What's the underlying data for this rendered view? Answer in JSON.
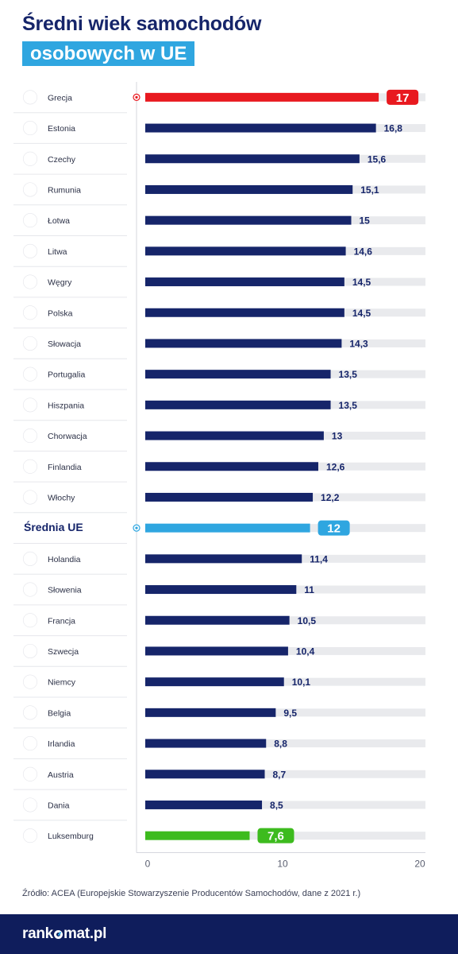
{
  "title_line1": "Średni wiek samochodów",
  "title_line2": "osobowych w UE",
  "source": "Źródło: ACEA (Europejskie Stowarzyszenie Producentów Samochodów, dane z 2021 r.)",
  "footer": {
    "logo_before": "rank",
    "logo_after": "mat.pl"
  },
  "colors": {
    "navy": "#16256a",
    "highlight_max": "#e8191f",
    "highlight_avg": "#2fa6e0",
    "highlight_min": "#3dbb1e",
    "track": "#e9eaed"
  },
  "chart_data": {
    "type": "bar",
    "orientation": "horizontal",
    "xlim": [
      0,
      20
    ],
    "xticks": [
      "0",
      "10",
      "20"
    ],
    "rows": [
      {
        "label": "Grecja",
        "value": 17,
        "display": "17",
        "flag": "greece",
        "highlight": "max",
        "marker": true
      },
      {
        "label": "Estonia",
        "value": 16.8,
        "display": "16,8",
        "flag": "estonia"
      },
      {
        "label": "Czechy",
        "value": 15.6,
        "display": "15,6",
        "flag": "czechia"
      },
      {
        "label": "Rumunia",
        "value": 15.1,
        "display": "15,1",
        "flag": "romania"
      },
      {
        "label": "Łotwa",
        "value": 15,
        "display": "15",
        "flag": "latvia"
      },
      {
        "label": "Litwa",
        "value": 14.6,
        "display": "14,6",
        "flag": "lithuania"
      },
      {
        "label": "Węgry",
        "value": 14.5,
        "display": "14,5",
        "flag": "hungary"
      },
      {
        "label": "Polska",
        "value": 14.5,
        "display": "14,5",
        "flag": "poland"
      },
      {
        "label": "Słowacja",
        "value": 14.3,
        "display": "14,3",
        "flag": "slovakia"
      },
      {
        "label": "Portugalia",
        "value": 13.5,
        "display": "13,5",
        "flag": "portugal"
      },
      {
        "label": "Hiszpania",
        "value": 13.5,
        "display": "13,5",
        "flag": "spain"
      },
      {
        "label": "Chorwacja",
        "value": 13,
        "display": "13",
        "flag": "croatia"
      },
      {
        "label": "Finlandia",
        "value": 12.6,
        "display": "12,6",
        "flag": "finland"
      },
      {
        "label": "Włochy",
        "value": 12.2,
        "display": "12,2",
        "flag": "italy"
      },
      {
        "label": "Średnia UE",
        "value": 12,
        "display": "12",
        "flag": "none",
        "highlight": "avg",
        "marker": true,
        "bold": true
      },
      {
        "label": "Holandia",
        "value": 11.4,
        "display": "11,4",
        "flag": "netherlands"
      },
      {
        "label": "Słowenia",
        "value": 11,
        "display": "11",
        "flag": "slovenia"
      },
      {
        "label": "Francja",
        "value": 10.5,
        "display": "10,5",
        "flag": "france"
      },
      {
        "label": "Szwecja",
        "value": 10.4,
        "display": "10,4",
        "flag": "sweden"
      },
      {
        "label": "Niemcy",
        "value": 10.1,
        "display": "10,1",
        "flag": "germany"
      },
      {
        "label": "Belgia",
        "value": 9.5,
        "display": "9,5",
        "flag": "belgium"
      },
      {
        "label": "Irlandia",
        "value": 8.8,
        "display": "8,8",
        "flag": "ireland"
      },
      {
        "label": "Austria",
        "value": 8.7,
        "display": "8,7",
        "flag": "austria"
      },
      {
        "label": "Dania",
        "value": 8.5,
        "display": "8,5",
        "flag": "denmark"
      },
      {
        "label": "Luksemburg",
        "value": 7.6,
        "display": "7,6",
        "flag": "luxembourg",
        "highlight": "min"
      }
    ]
  }
}
